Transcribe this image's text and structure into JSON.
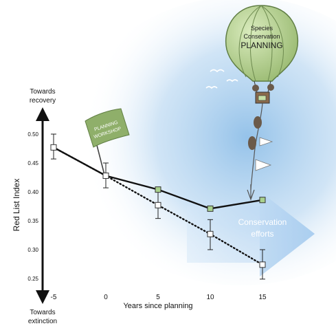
{
  "chart_data": {
    "type": "line",
    "xlabel": "Years since planning",
    "ylabel": "Red List Index",
    "x_ticks": [
      "-5",
      "0",
      "5",
      "10",
      "15"
    ],
    "y_ticks": [
      "0.50",
      "0.45",
      "0.40",
      "0.35",
      "0.30",
      "0.25"
    ],
    "xlim": [
      -5,
      15
    ],
    "ylim": [
      0.25,
      0.5
    ],
    "grid": false,
    "series": [
      {
        "style": "solid",
        "marker": "filled-green-square",
        "color": "#111111",
        "marker_color": "#a9d18e",
        "x": [
          -5,
          0,
          5,
          10,
          15
        ],
        "y": [
          0.477,
          0.428,
          0.404,
          0.371,
          0.386
        ]
      },
      {
        "style": "dotted",
        "marker": "open-square",
        "color": "#111111",
        "x": [
          -5,
          0,
          5,
          10,
          15
        ],
        "y": [
          0.477,
          0.428,
          0.377,
          0.327,
          0.274
        ],
        "error_low": [
          0.457,
          0.407,
          0.354,
          0.3,
          0.249
        ],
        "error_high": [
          0.5,
          0.45,
          0.4,
          0.352,
          0.3
        ]
      }
    ],
    "annotations": {
      "top_arrow": [
        "Towards",
        "recovery"
      ],
      "bottom_arrow": [
        "Towards",
        "extinction"
      ],
      "flag": [
        "PLANNING",
        "WORKSHOP"
      ],
      "balloon": [
        "Species",
        "Conservation",
        "PLANNING"
      ],
      "big_arrow": [
        "Conservation",
        "efforts"
      ]
    }
  },
  "colors": {
    "sky": "#b9d8f2",
    "balloon": "#b4cf8e",
    "balloon_stroke": "#6d8a4f",
    "flag": "#8faf6a",
    "big_arrow": "#b6d6f2"
  }
}
